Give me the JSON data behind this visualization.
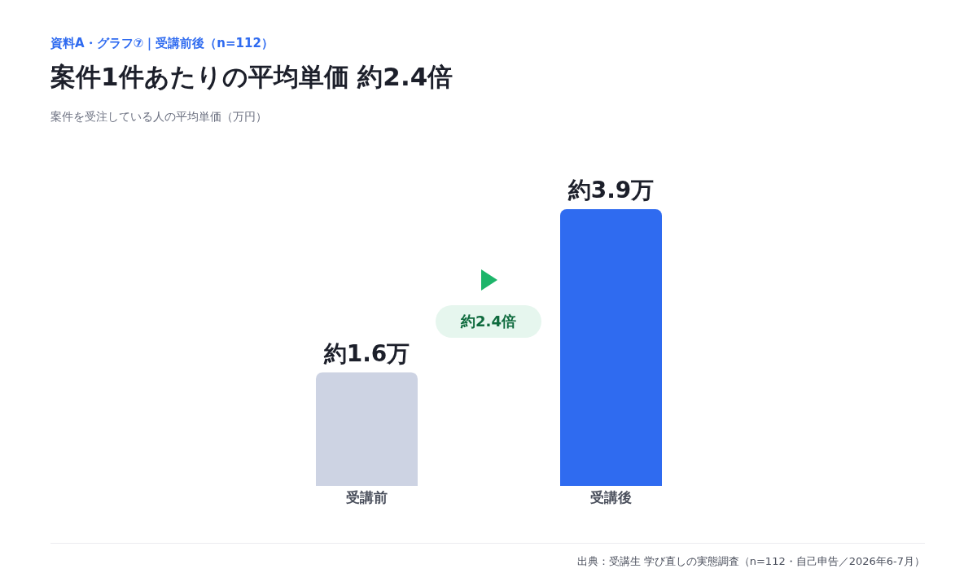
{
  "chart_data": {
    "type": "bar",
    "subtitle": "資料A・グラフ⑦｜受講前後（n=112）",
    "title": "案件1件あたりの平均単価 約2.4倍",
    "categories": [
      "受講前",
      "受講後"
    ],
    "values": [
      1.6,
      3.9
    ],
    "colors": [
      "#cdd3e3",
      "#2f6bf0"
    ],
    "value_labels": [
      "約1.6万",
      "約3.9万"
    ],
    "annotations": [
      "約2.4倍",
      "案件を受注している人の平均単価（万円）",
      "出典：受講生 学び直しの実態調査（n=112・自己申告／2026年6-7月）"
    ]
  }
}
